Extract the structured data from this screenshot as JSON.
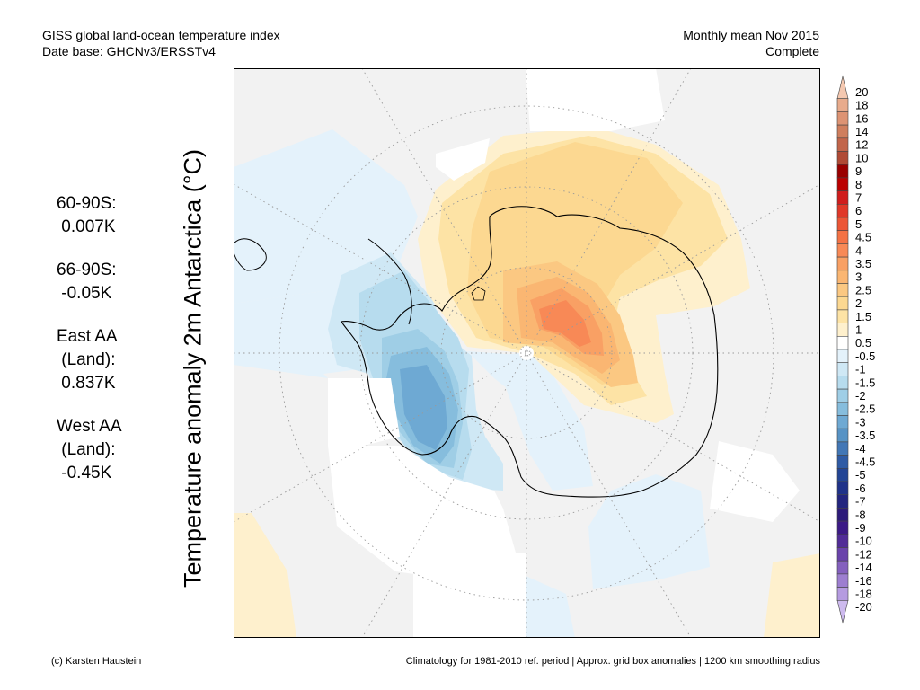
{
  "header": {
    "title_line1": "GISS global land-ocean temperature index",
    "title_line2": "Date base: GHCNv3/ERSSTv4",
    "period_line1": "Monthly mean Nov 2015",
    "period_line2": "Complete"
  },
  "stats": [
    {
      "label": "60-90S:",
      "value": " 0.007K"
    },
    {
      "label": "66-90S:",
      "value": " -0.05K"
    },
    {
      "label": "East AA\n (Land):",
      "value": " 0.837K"
    },
    {
      "label": "West AA\n (Land):",
      "value": " -0.45K"
    }
  ],
  "axis_label": "Temperature anomaly 2m Antarctica (°C)",
  "colorbar": {
    "labels": [
      "20",
      "18",
      "16",
      "14",
      "12",
      "10",
      "9",
      "8",
      "7",
      "6",
      "5",
      "4.5",
      "4",
      "3.5",
      "3",
      "2.5",
      "2",
      "1.5",
      "1",
      "0.5",
      "-0.5",
      "-1",
      "-1.5",
      "-2",
      "-2.5",
      "-3",
      "-3.5",
      "-4",
      "-4.5",
      "-5",
      "-6",
      "-7",
      "-8",
      "-9",
      "-10",
      "-12",
      "-14",
      "-16",
      "-18",
      "-20"
    ],
    "colors": [
      "#f4c8b0",
      "#e8ab8c",
      "#dd9373",
      "#cf7e5d",
      "#c2654a",
      "#b04a35",
      "#9a0000",
      "#bb0000",
      "#d01d1d",
      "#e03828",
      "#ec5636",
      "#f47245",
      "#f88956",
      "#f9a064",
      "#fab672",
      "#fbc882",
      "#fcd891",
      "#fde3a5",
      "#fef0cd",
      "#ffffff",
      "#e4f2fb",
      "#cfe8f5",
      "#b7dcee",
      "#9fcee6",
      "#86bddd",
      "#6ea9d3",
      "#5793c5",
      "#4277b6",
      "#2f5ba5",
      "#234595",
      "#1f3289",
      "#23257f",
      "#2d1b7a",
      "#3c1a86",
      "#512c97",
      "#6a43ab",
      "#8460be",
      "#9d7ed0",
      "#b59be0",
      "#cdbaee"
    ]
  },
  "footer": {
    "credit": "(c) Karsten Haustein",
    "note": "Climatology for 1981-2010 ref. period | Approx. grid box anomalies | 1200 km smoothing radius"
  }
}
